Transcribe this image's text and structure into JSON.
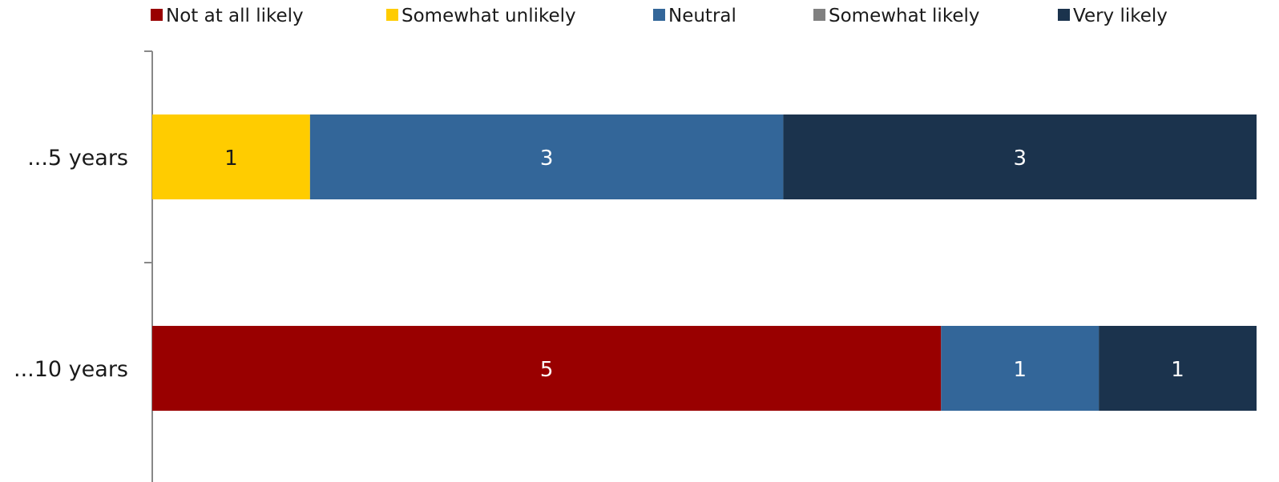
{
  "chart_data": {
    "type": "bar",
    "orientation": "horizontal",
    "stacked": true,
    "categories": [
      "...5 years",
      "...10 years"
    ],
    "series": [
      {
        "name": "Not at all likely",
        "color": "#990000",
        "values": [
          0,
          5
        ]
      },
      {
        "name": "Somewhat unlikely",
        "color": "#FFCC00",
        "values": [
          1,
          0
        ]
      },
      {
        "name": "Neutral",
        "color": "#336699",
        "values": [
          3,
          1
        ]
      },
      {
        "name": "Somewhat likely",
        "color": "#808080",
        "values": [
          0,
          0
        ]
      },
      {
        "name": "Very likely",
        "color": "#1B334D",
        "values": [
          3,
          1
        ]
      }
    ],
    "xlim": [
      0,
      7
    ],
    "legend_position": "top",
    "grid": false,
    "data_labels": true
  }
}
